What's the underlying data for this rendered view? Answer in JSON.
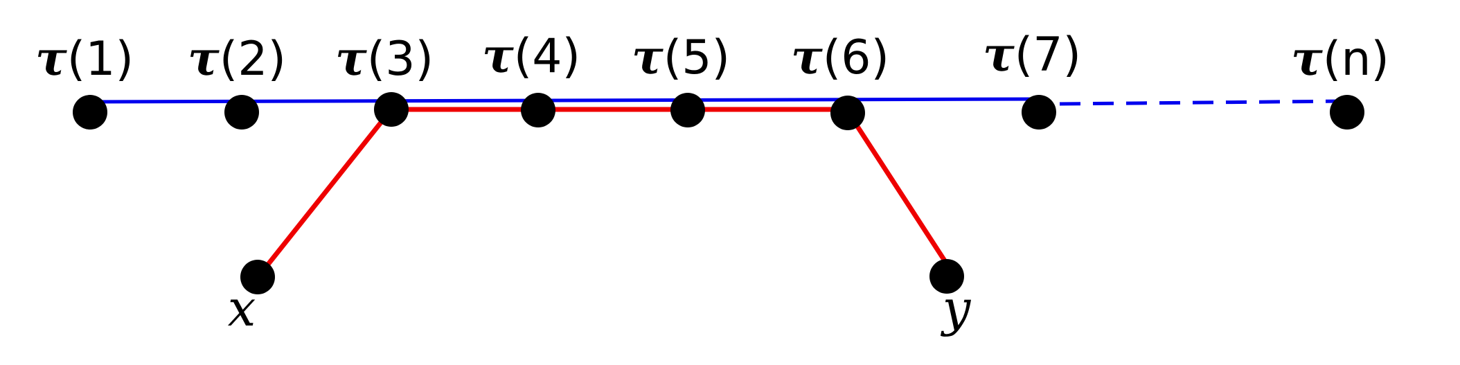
{
  "nodes": [
    {
      "symbol": "τ",
      "index": "(1)"
    },
    {
      "symbol": "τ",
      "index": "(2)"
    },
    {
      "symbol": "τ",
      "index": "(3)"
    },
    {
      "symbol": "τ",
      "index": "(4)"
    },
    {
      "symbol": "τ",
      "index": "(5)"
    },
    {
      "symbol": "τ",
      "index": "(6)"
    },
    {
      "symbol": "τ",
      "index": "(7)"
    },
    {
      "symbol": "τ",
      "index": "(n)"
    }
  ],
  "endpoints": [
    {
      "label": "x"
    },
    {
      "label": "y"
    }
  ]
}
